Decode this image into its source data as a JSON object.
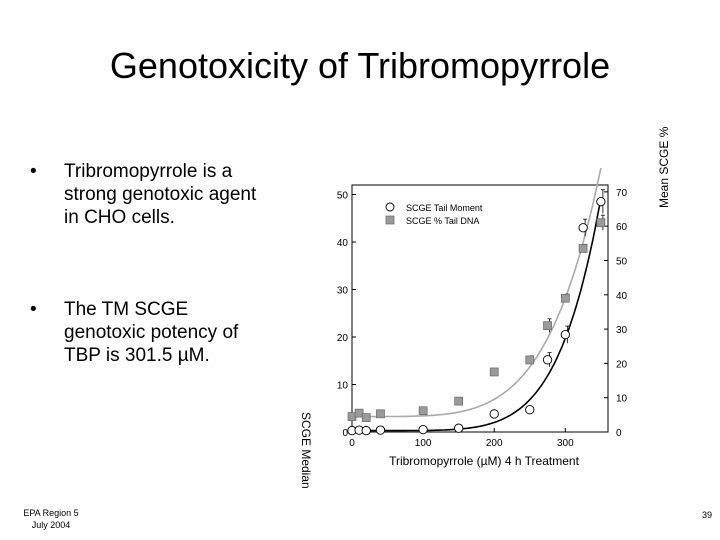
{
  "slide": {
    "title": "Genotoxicity of Tribromopyrrole",
    "bullets": [
      {
        "marker": "•",
        "text": "Tribromopyrrole is a strong genotoxic agent in CHO cells."
      },
      {
        "marker": "•",
        "text": "The TM SCGE genotoxic potency of TBP  is 301.5 µM."
      }
    ],
    "footer_left": [
      "EPA Region 5",
      "July 2004"
    ],
    "page_number": "39"
  },
  "chart_data": {
    "type": "scatter",
    "xlabel": "Tribromopyrrole (µM) 4 h Treatment",
    "ylabel_left": "SCGE Median",
    "ylabel_right": "Mean SCGE %",
    "x_ticks": [
      "0",
      "100",
      "200",
      "300"
    ],
    "xlim": [
      0,
      360
    ],
    "y_left_ticks": [
      "0",
      "10",
      "20",
      "30",
      "40",
      "50"
    ],
    "y_left_lim": [
      0,
      52
    ],
    "y_right_ticks": [
      "0",
      "10",
      "20",
      "30",
      "40",
      "50",
      "60",
      "70"
    ],
    "y_right_lim": [
      0,
      72
    ],
    "legend_position": "top-left",
    "series": [
      {
        "name": "SCGE Tail Moment",
        "axis": "left",
        "marker": "circle-open",
        "color": "#000000",
        "x": [
          0,
          10,
          20,
          40,
          100,
          150,
          200,
          250,
          275,
          300,
          325,
          350
        ],
        "y": [
          0.3,
          0.4,
          0.3,
          0.4,
          0.5,
          0.8,
          3.8,
          4.7,
          15.2,
          20.5,
          43.0,
          48.5
        ],
        "err": [
          0.2,
          0.2,
          0.2,
          0.2,
          0.2,
          0.2,
          0.4,
          0.4,
          1.5,
          1.8,
          1.8,
          2.5
        ]
      },
      {
        "name": "SCGE % Tail DNA",
        "axis": "right",
        "marker": "square-filled",
        "color": "#9a9a9a",
        "x": [
          0,
          10,
          20,
          40,
          100,
          150,
          200,
          250,
          275,
          300,
          325,
          350
        ],
        "y": [
          4.5,
          5.5,
          4.2,
          5.3,
          6.2,
          9.0,
          17.5,
          21.0,
          31.0,
          39.0,
          53.5,
          61.0
        ],
        "err": [
          0.6,
          0.6,
          0.6,
          0.6,
          0.8,
          1.0,
          0.8,
          1.2,
          2.0,
          1.2,
          1.2,
          2.2
        ]
      }
    ]
  }
}
